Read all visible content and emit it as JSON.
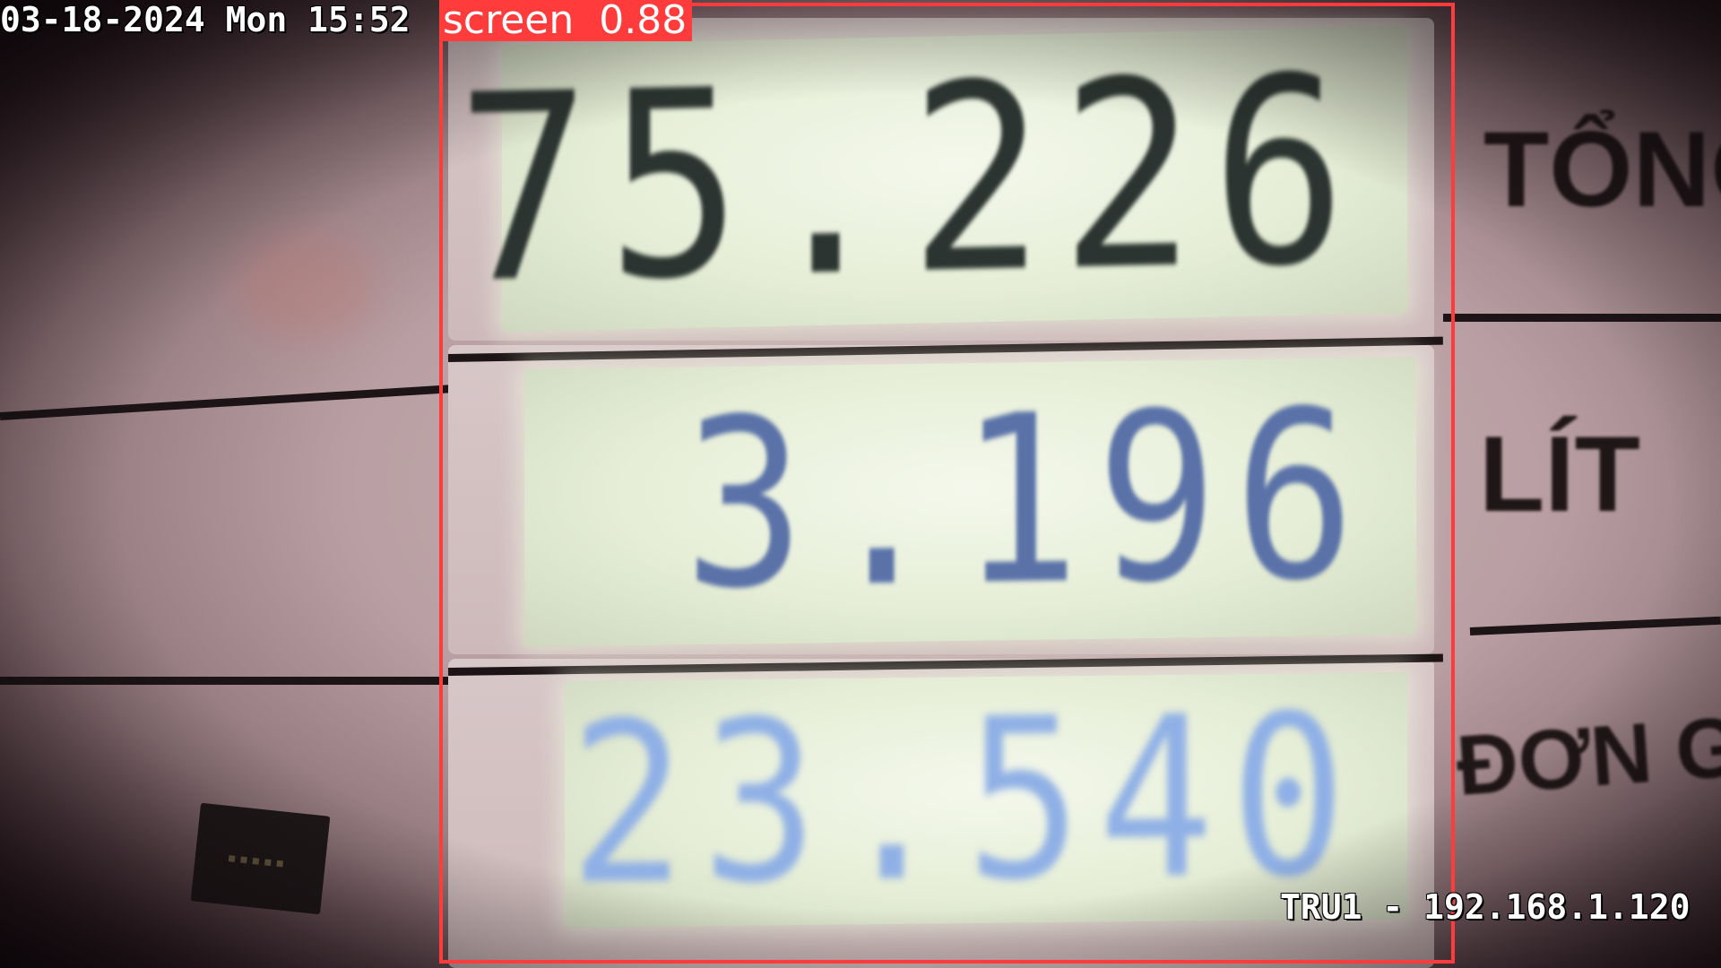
{
  "osd": {
    "timestamp": "03-18-2024 Mon 15:52",
    "camera_info": "TRU1 - 192.168.1.120"
  },
  "detection": {
    "class_label": "screen",
    "confidence": "0.88",
    "box_color": "#ff3b3b"
  },
  "pump_display": {
    "total_amount": "75.226",
    "liters": "3.196",
    "unit_price": "23.540"
  },
  "side_labels": {
    "total": "TỔNG",
    "liters": "LÍT",
    "unit_price": "ĐƠN G"
  },
  "colors": {
    "lcd_background": "#e6eed7",
    "total_digits": "#2b3430",
    "liters_digits": "#5a72a8",
    "price_digits": "#8fb0e6"
  }
}
